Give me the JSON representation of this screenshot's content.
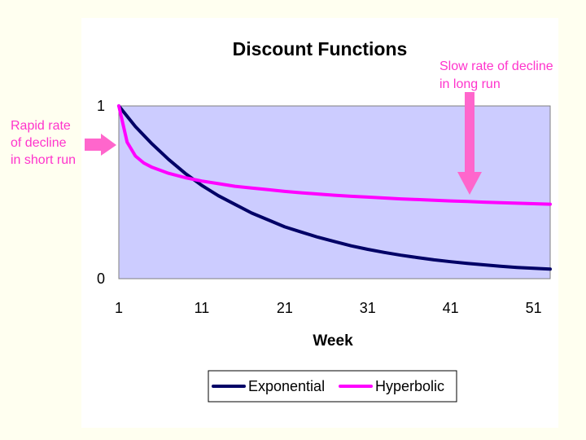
{
  "chart_data": {
    "type": "line",
    "title": "Discount Functions",
    "xlabel": "Week",
    "ylabel": "",
    "xlim": [
      1,
      53
    ],
    "ylim": [
      0,
      1
    ],
    "xticks": [
      "1",
      "11",
      "21",
      "31",
      "41",
      "51"
    ],
    "yticks": [
      "0",
      "1"
    ],
    "grid": false,
    "legend": "bottom",
    "plot_background": "#ccccff",
    "series": [
      {
        "name": "Exponential",
        "color": "#000066",
        "x": [
          1,
          3,
          5,
          7,
          9,
          11,
          13,
          15,
          17,
          19,
          21,
          23,
          25,
          27,
          29,
          31,
          33,
          35,
          37,
          39,
          41,
          43,
          45,
          47,
          49,
          51,
          53
        ],
        "values": [
          1.0,
          0.88,
          0.78,
          0.69,
          0.61,
          0.54,
          0.48,
          0.43,
          0.38,
          0.34,
          0.3,
          0.27,
          0.24,
          0.215,
          0.19,
          0.17,
          0.152,
          0.136,
          0.122,
          0.109,
          0.098,
          0.088,
          0.08,
          0.072,
          0.065,
          0.06,
          0.055
        ]
      },
      {
        "name": "Hyperbolic",
        "color": "#ff00ff",
        "x": [
          1,
          2,
          3,
          4,
          5,
          7,
          9,
          11,
          13,
          15,
          17,
          19,
          21,
          23,
          25,
          27,
          29,
          31,
          33,
          35,
          37,
          39,
          41,
          43,
          45,
          47,
          49,
          51,
          53
        ],
        "values": [
          1.0,
          0.79,
          0.71,
          0.67,
          0.645,
          0.61,
          0.585,
          0.565,
          0.55,
          0.535,
          0.525,
          0.515,
          0.505,
          0.497,
          0.49,
          0.483,
          0.477,
          0.472,
          0.467,
          0.462,
          0.458,
          0.454,
          0.45,
          0.447,
          0.443,
          0.44,
          0.437,
          0.434,
          0.431
        ]
      }
    ]
  },
  "annotations": {
    "left": [
      "Rapid rate",
      "of decline",
      "in short run"
    ],
    "right": [
      "Slow rate of decline",
      "in long run"
    ]
  }
}
